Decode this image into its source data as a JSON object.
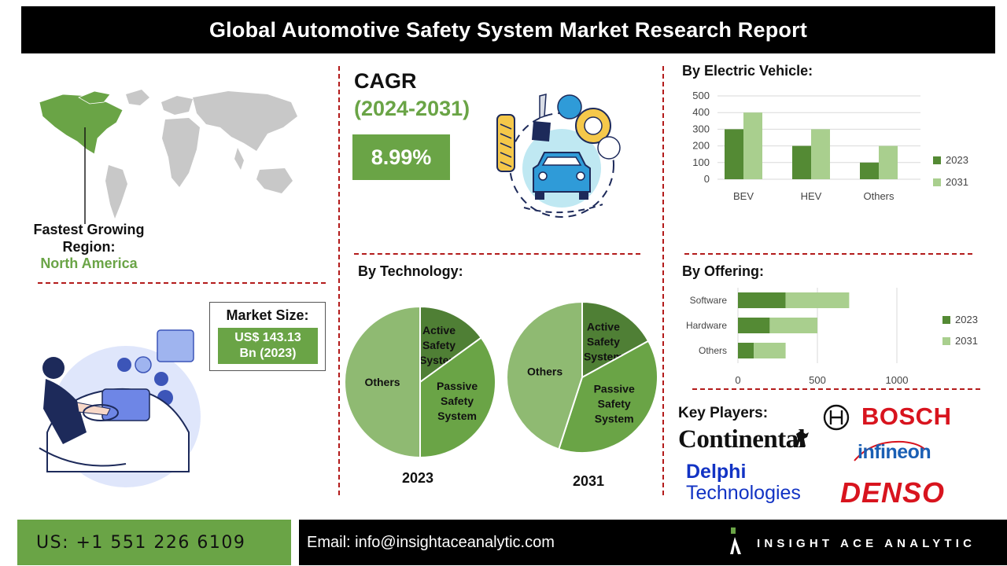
{
  "header": {
    "title": "Global Automotive Safety System Market Research Report"
  },
  "region": {
    "label": "Fastest Growing Region:",
    "value": "North America"
  },
  "market_size": {
    "title": "Market Size:",
    "value_line1": "US$ 143.13",
    "value_line2": "Bn (2023)"
  },
  "cagr": {
    "title": "CAGR",
    "years": "(2024-2031)",
    "value": "8.99%"
  },
  "colors": {
    "accent_green": "#6aa446",
    "dark_green": "#548a34",
    "light_green": "#a9cf8e",
    "pie_dark": "#4f7f35",
    "pie_mid": "#6aa446",
    "pie_light": "#8fba72",
    "divider_red": "#b31b1b"
  },
  "electric_vehicle": {
    "title": "By Electric Vehicle:"
  },
  "technology": {
    "title": "By Technology:"
  },
  "offering": {
    "title": "By  Offering:"
  },
  "key_players": {
    "title": "Key Players:",
    "bosch": "BOSCH",
    "continental": "Continental",
    "infineon": "infineon",
    "delphi_line1": "Delphi",
    "delphi_line2": "Technologies",
    "denso": "DENSO"
  },
  "footer": {
    "phone": "US: +1 551 226 6109",
    "email": "Email: info@insightaceanalytic.com",
    "brand": "INSIGHT ACE ANALYTIC"
  },
  "chart_data": [
    {
      "type": "bar",
      "title": "By Electric Vehicle:",
      "categories": [
        "BEV",
        "HEV",
        "Others"
      ],
      "series": [
        {
          "name": "2023",
          "values": [
            300,
            200,
            100
          ]
        },
        {
          "name": "2031",
          "values": [
            400,
            300,
            200
          ]
        }
      ],
      "ylim": [
        0,
        500
      ],
      "yticks": [
        0,
        100,
        200,
        300,
        400,
        500
      ],
      "grid": true,
      "legend": "right"
    },
    {
      "type": "pie",
      "title": "2023",
      "labels": [
        "Active Safety System",
        "Passive Safety System",
        "Others"
      ],
      "values": [
        15,
        35,
        50
      ]
    },
    {
      "type": "pie",
      "title": "2031",
      "labels": [
        "Active Safety System",
        "Passive Safety System",
        "Others"
      ],
      "values": [
        17,
        38,
        45
      ]
    },
    {
      "type": "bar",
      "orientation": "horizontal-stacked",
      "title": "By  Offering:",
      "categories": [
        "Software",
        "Hardware",
        "Others"
      ],
      "series": [
        {
          "name": "2023",
          "values": [
            300,
            200,
            100
          ]
        },
        {
          "name": "2031",
          "values": [
            400,
            300,
            200
          ]
        }
      ],
      "xlim": [
        0,
        1000
      ],
      "xticks": [
        0,
        500,
        1000
      ],
      "grid": true,
      "legend": "right"
    }
  ]
}
